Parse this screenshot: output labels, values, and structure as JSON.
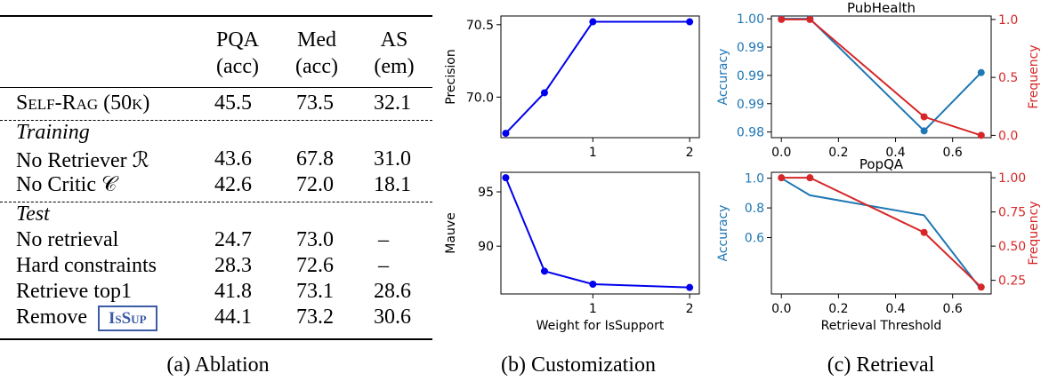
{
  "ablation": {
    "columns": [
      {
        "name": "PQA",
        "metric": "(acc)"
      },
      {
        "name": "Med",
        "metric": "(acc)"
      },
      {
        "name": "AS",
        "metric": "(em)"
      }
    ],
    "main_row": {
      "label": "Self-Rag (50k)",
      "values": [
        "45.5",
        "73.5",
        "32.1"
      ]
    },
    "training": {
      "header": "Training",
      "rows": [
        {
          "label": "No Retriever ℛ",
          "values": [
            "43.6",
            "67.8",
            "31.0"
          ]
        },
        {
          "label": "No Critic 𝒞",
          "values": [
            "42.6",
            "72.0",
            "18.1"
          ]
        }
      ]
    },
    "test": {
      "header": "Test",
      "rows": [
        {
          "label": "No retrieval",
          "values": [
            "24.7",
            "73.0",
            "–"
          ]
        },
        {
          "label": "Hard constraints",
          "values": [
            "28.3",
            "72.6",
            "–"
          ]
        },
        {
          "label": "Retrieve top1",
          "values": [
            "41.8",
            "73.1",
            "28.6"
          ]
        },
        {
          "label": "Remove",
          "badge": "IsSup",
          "values": [
            "44.1",
            "73.2",
            "30.6"
          ]
        }
      ]
    }
  },
  "captions": {
    "a": "(a) Ablation",
    "b": "(b) Customization",
    "c": "(c) Retrieval"
  },
  "chart_data": [
    {
      "type": "line",
      "id": "precision",
      "ylabel": "Precision",
      "xlabel": "",
      "x": [
        0.1,
        0.5,
        1,
        2
      ],
      "values": [
        69.75,
        70.03,
        70.52,
        70.52
      ],
      "xlim": [
        0.05,
        2.1
      ],
      "ylim": [
        69.72,
        70.56
      ],
      "xticks": [
        1,
        2
      ],
      "yticks": [
        70.0,
        70.5
      ],
      "ytick_labels": [
        "70.0",
        "70.5"
      ],
      "color": "#0000ee"
    },
    {
      "type": "line",
      "id": "mauve",
      "ylabel": "Mauve",
      "xlabel": "Weight for IsSupport",
      "x": [
        0.1,
        0.5,
        1,
        2
      ],
      "values": [
        96.3,
        87.7,
        86.5,
        86.2
      ],
      "xlim": [
        0.05,
        2.1
      ],
      "ylim": [
        85.6,
        96.8
      ],
      "xticks": [
        1,
        2
      ],
      "yticks": [
        90,
        95
      ],
      "ytick_labels": [
        "90",
        "95"
      ],
      "color": "#0000ee"
    },
    {
      "type": "line",
      "id": "pubhealth",
      "title": "PubHealth",
      "xlabel": "",
      "ylabel_left": "Accuracy",
      "ylabel_right": "Frequency",
      "x": [
        0.0,
        0.1,
        0.5,
        0.7
      ],
      "xlim": [
        -0.035,
        0.735
      ],
      "xticks": [
        0.0,
        0.2,
        0.4,
        0.6
      ],
      "xtick_labels": [
        "0.0",
        "0.2",
        "0.4",
        "0.6"
      ],
      "series": [
        {
          "name": "Accuracy",
          "axis": "left",
          "values": [
            1.0,
            1.0,
            0.9802,
            0.9905
          ],
          "color": "#1f77b4"
        },
        {
          "name": "Frequency",
          "axis": "right",
          "values": [
            1.0,
            1.0,
            0.16,
            0.0
          ],
          "color": "#d62728"
        }
      ],
      "ylim_left": [
        0.979,
        1.0005
      ],
      "yticks_left": [
        0.98,
        0.985,
        0.99,
        0.995,
        1.0
      ],
      "ytick_labels_left": [
        "0.98",
        "0.99",
        "0.99",
        "0.99",
        "1.00"
      ],
      "ylim_right": [
        -0.02,
        1.03
      ],
      "yticks_right": [
        0.0,
        0.5,
        1.0
      ],
      "ytick_labels_right": [
        "0.0",
        "0.5",
        "1.0"
      ]
    },
    {
      "type": "line",
      "id": "popqa",
      "title": "PopQA",
      "xlabel": "Retrieval Threshold",
      "ylabel_left": "Accuracy",
      "ylabel_right": "Frequency",
      "x": [
        0.0,
        0.1,
        0.5,
        0.7
      ],
      "xlim": [
        -0.035,
        0.735
      ],
      "xticks": [
        0.0,
        0.2,
        0.4,
        0.6
      ],
      "xtick_labels": [
        "0.0",
        "0.2",
        "0.4",
        "0.6"
      ],
      "series": [
        {
          "name": "Accuracy",
          "axis": "left",
          "values": [
            1.0,
            0.885,
            0.75,
            0.25
          ],
          "color": "#1f77b4",
          "markers": false
        },
        {
          "name": "Frequency",
          "axis": "right",
          "values": [
            1.0,
            1.0,
            0.6,
            0.2
          ],
          "color": "#d62728"
        }
      ],
      "ylim_left": [
        0.22,
        1.04
      ],
      "yticks_left": [
        0.6,
        0.8,
        1.0
      ],
      "ytick_labels_left": [
        "0.6",
        "0.8",
        "1.0"
      ],
      "ylim_right": [
        0.15,
        1.04
      ],
      "yticks_right": [
        0.25,
        0.5,
        0.75,
        1.0
      ],
      "ytick_labels_right": [
        "0.25",
        "0.50",
        "0.75",
        "1.00"
      ]
    }
  ]
}
